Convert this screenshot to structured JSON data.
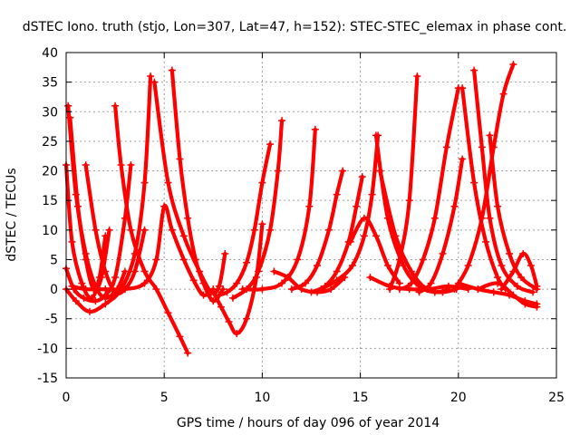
{
  "chart_data": {
    "type": "scatter",
    "title": "dSTEC Iono. truth (stjo, Lon=307, Lat=47, h=152): STEC-STEC_elemax in phase cont.",
    "xlabel": "GPS time / hours of day 096 of year 2014",
    "ylabel": "dSTEC  / TECUs",
    "xlim": [
      0,
      25
    ],
    "ylim": [
      -15,
      40
    ],
    "xticks": [
      "0",
      "5",
      "10",
      "15",
      "20",
      "25"
    ],
    "yticks": [
      "-15",
      "-10",
      "-5",
      "0",
      "5",
      "10",
      "15",
      "20",
      "25",
      "30",
      "35",
      "40"
    ],
    "grid": true,
    "marker": "+",
    "color": "#ff0000",
    "series": [
      {
        "x": [
          0.0,
          0.3,
          0.8,
          1.3,
          1.7,
          2.0
        ],
        "y": [
          21.0,
          8.0,
          1.0,
          -1.5,
          2.0,
          9.0
        ]
      },
      {
        "x": [
          0.1,
          0.5,
          1.0,
          1.5,
          2.0,
          2.6,
          3.0
        ],
        "y": [
          31.0,
          16.0,
          6.0,
          0.5,
          -1.5,
          0.0,
          3.0
        ]
      },
      {
        "x": [
          0.2,
          0.6,
          1.0,
          1.4,
          1.8,
          2.2
        ],
        "y": [
          29.0,
          14.0,
          5.0,
          0.0,
          2.0,
          10.0
        ]
      },
      {
        "x": [
          0.0,
          0.4,
          0.9,
          1.5,
          2.0,
          2.5,
          3.0,
          3.3
        ],
        "y": [
          3.5,
          0.0,
          -1.5,
          -2.0,
          -1.0,
          2.0,
          12.0,
          21.0
        ]
      },
      {
        "x": [
          0.0,
          0.5,
          1.2,
          2.0,
          2.8,
          3.5,
          4.0,
          4.3
        ],
        "y": [
          0.0,
          -2.0,
          -3.8,
          -2.5,
          0.0,
          6.0,
          18.0,
          36.0
        ]
      },
      {
        "x": [
          1.0,
          1.5,
          2.0,
          2.5,
          3.0,
          3.5,
          4.0
        ],
        "y": [
          21.0,
          10.0,
          3.0,
          -0.5,
          0.0,
          3.0,
          10.0
        ]
      },
      {
        "x": [
          2.5,
          2.8,
          3.3,
          4.0,
          4.6,
          5.2,
          5.8,
          6.2
        ],
        "y": [
          31.0,
          21.0,
          10.0,
          3.0,
          0.0,
          -4.0,
          -8.0,
          -10.8
        ]
      },
      {
        "x": [
          0.3,
          1.0,
          2.0,
          3.0,
          4.0,
          4.6,
          5.0,
          5.4,
          6.0,
          6.5,
          7.0,
          7.5
        ],
        "y": [
          0.5,
          0.0,
          0.0,
          0.0,
          1.0,
          5.0,
          14.0,
          10.0,
          5.0,
          1.5,
          -1.0,
          0.0
        ]
      },
      {
        "x": [
          5.4,
          5.8,
          6.2,
          6.6,
          7.0,
          7.5,
          8.0
        ],
        "y": [
          37.0,
          22.0,
          12.0,
          5.0,
          1.0,
          -2.0,
          0.0
        ]
      },
      {
        "x": [
          4.5,
          5.2,
          6.0,
          6.8,
          7.4,
          7.8,
          8.1
        ],
        "y": [
          35.0,
          18.0,
          9.0,
          3.0,
          -0.5,
          0.5,
          6.0
        ]
      },
      {
        "x": [
          7.5,
          7.9,
          8.3,
          8.7,
          9.2,
          9.7,
          10.0
        ],
        "y": [
          -0.5,
          -3.0,
          -5.5,
          -7.5,
          -5.0,
          2.0,
          11.0
        ]
      },
      {
        "x": [
          7.8,
          8.2,
          8.7,
          9.2,
          9.6,
          10.0,
          10.4
        ],
        "y": [
          -1.0,
          -0.5,
          1.0,
          4.5,
          10.0,
          18.0,
          24.5
        ]
      },
      {
        "x": [
          8.5,
          9.2,
          9.8,
          10.4,
          10.8,
          11.0
        ],
        "y": [
          -1.5,
          0.0,
          3.0,
          10.0,
          20.0,
          28.5
        ]
      },
      {
        "x": [
          9.0,
          10.0,
          11.0,
          11.8,
          12.4,
          12.7
        ],
        "y": [
          0.0,
          0.0,
          1.0,
          5.0,
          14.0,
          27.0
        ]
      },
      {
        "x": [
          10.6,
          11.3,
          12.0,
          12.8,
          13.5,
          14.2
        ],
        "y": [
          3.0,
          2.0,
          0.0,
          -0.5,
          0.0,
          2.0
        ]
      },
      {
        "x": [
          11.5,
          12.2,
          12.8,
          13.4,
          13.8,
          14.1
        ],
        "y": [
          0.0,
          1.0,
          4.0,
          10.0,
          16.0,
          20.0
        ]
      },
      {
        "x": [
          12.5,
          13.2,
          13.8,
          14.4,
          14.8,
          15.1
        ],
        "y": [
          -0.5,
          0.5,
          3.0,
          8.0,
          14.0,
          19.0
        ]
      },
      {
        "x": [
          13.0,
          13.8,
          14.6,
          15.2,
          15.6,
          15.9
        ],
        "y": [
          0.0,
          1.5,
          4.0,
          9.0,
          16.0,
          26.0
        ]
      },
      {
        "x": [
          14.5,
          15.2,
          15.8,
          16.4,
          17.0
        ],
        "y": [
          8.0,
          12.0,
          9.0,
          4.0,
          1.0
        ]
      },
      {
        "x": [
          15.8,
          16.4,
          17.2,
          18.0,
          18.8,
          19.5
        ],
        "y": [
          26.0,
          12.0,
          4.0,
          0.5,
          -0.5,
          0.0
        ]
      },
      {
        "x": [
          16.0,
          16.8,
          17.6,
          18.4,
          19.2,
          19.9
        ],
        "y": [
          20.0,
          9.0,
          3.0,
          0.0,
          -0.5,
          0.0
        ]
      },
      {
        "x": [
          15.5,
          16.5,
          17.5,
          18.5,
          19.5,
          20.5
        ],
        "y": [
          2.0,
          0.5,
          0.0,
          0.0,
          0.5,
          0.0
        ]
      },
      {
        "x": [
          16.5,
          17.0,
          17.5,
          17.9
        ],
        "y": [
          0.0,
          5.0,
          15.0,
          36.0
        ]
      },
      {
        "x": [
          17.0,
          17.6,
          18.2,
          18.8,
          19.4,
          20.0
        ],
        "y": [
          0.0,
          1.0,
          5.0,
          12.0,
          24.0,
          34.0
        ]
      },
      {
        "x": [
          18.0,
          18.6,
          19.2,
          19.8,
          20.2
        ],
        "y": [
          -0.5,
          1.0,
          6.0,
          14.0,
          22.0
        ]
      },
      {
        "x": [
          19.8,
          20.5,
          21.2,
          21.8,
          22.3,
          22.8
        ],
        "y": [
          0.0,
          4.0,
          12.0,
          24.0,
          33.0,
          38.0
        ]
      },
      {
        "x": [
          20.2,
          20.8,
          21.4,
          22.0,
          22.4
        ],
        "y": [
          34.0,
          18.0,
          8.0,
          2.0,
          0.0
        ]
      },
      {
        "x": [
          20.8,
          21.2,
          21.6,
          22.2,
          23.0,
          23.8
        ],
        "y": [
          37.0,
          24.0,
          12.0,
          4.0,
          0.5,
          -0.5
        ]
      },
      {
        "x": [
          21.6,
          22.0,
          22.6,
          23.2,
          24.0
        ],
        "y": [
          26.0,
          14.0,
          6.0,
          2.0,
          0.0
        ]
      },
      {
        "x": [
          20.0,
          21.0,
          21.8,
          22.6,
          23.4,
          24.0
        ],
        "y": [
          1.0,
          0.0,
          -0.5,
          -1.0,
          -2.0,
          -2.5
        ]
      },
      {
        "x": [
          21.0,
          22.0,
          22.8,
          23.4,
          24.0
        ],
        "y": [
          0.0,
          1.0,
          -1.0,
          -2.5,
          -3.0
        ]
      },
      {
        "x": [
          22.2,
          22.8,
          23.3,
          23.7,
          24.0
        ],
        "y": [
          0.0,
          3.0,
          6.0,
          4.0,
          0.5
        ]
      }
    ]
  }
}
